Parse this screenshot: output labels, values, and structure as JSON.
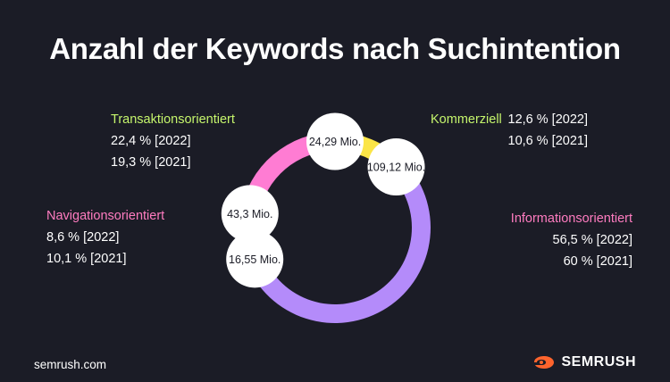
{
  "title": "Anzahl der Keywords nach Suchintention",
  "footer": {
    "source": "semrush.com",
    "brand": "SEMRUSH"
  },
  "colors": {
    "background": "#1b1c26",
    "brand": "#ff642d"
  },
  "categories": {
    "transaktion": {
      "name": "Transaktionsorientiert",
      "v2022": "22,4 % [2022]",
      "v2021": "19,3 % [2021]",
      "name_color": "#c5f56c"
    },
    "kommerziell": {
      "name": "Kommerziell",
      "v2022": "12,6 % [2022]",
      "v2021": "10,6 % [2021]",
      "name_color": "#c5f56c"
    },
    "navigation": {
      "name": "Navigationsorientiert",
      "v2022": "8,6 % [2022]",
      "v2021": "10,1 % [2021]",
      "name_color": "#ff7cc0"
    },
    "information": {
      "name": "Informationsorientiert",
      "v2022": "56,5 % [2022]",
      "v2021": "60 % [2021]",
      "name_color": "#ff7cc0"
    }
  },
  "chart_data": {
    "type": "pie",
    "style": "donut",
    "slices": [
      {
        "name": "Kommerziell",
        "value": 24.29,
        "label": "24,29 Mio.",
        "color": "#fbe547"
      },
      {
        "name": "Informationsorientiert",
        "value": 109.12,
        "label": "109,12 Mio.",
        "color": "#b48bfa"
      },
      {
        "name": "Navigationsorientiert",
        "value": 16.55,
        "label": "16,55 Mio.",
        "color": "#79dcff"
      },
      {
        "name": "Transaktionsorientiert",
        "value": 43.3,
        "label": "43,3 Mio.",
        "color": "#ff7cd3"
      }
    ]
  }
}
